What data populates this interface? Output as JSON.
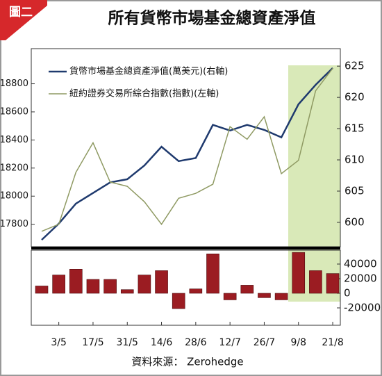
{
  "badge": "圖二",
  "source": "資料來源： Zerohedge",
  "chart_data": [
    {
      "type": "line",
      "title": "所有貨幣市場基金總資產淨值",
      "ylim": [
        17640,
        19050
      ],
      "yticks": [
        17800,
        18000,
        18200,
        18400,
        18600,
        18800
      ],
      "y2lim": [
        596.1,
        627.8
      ],
      "y2ticks": [
        600,
        605,
        610,
        615,
        620,
        625
      ],
      "series": [
        {
          "name": "貨幣市場基金總資產淨值(萬美元)(右軸)",
          "color": "#1f3a6e",
          "axis": "y2",
          "values": [
            597.2,
            599.8,
            603.0,
            604.7,
            606.4,
            606.9,
            609.1,
            612.1,
            609.8,
            610.3,
            615.6,
            614.7,
            615.6,
            614.8,
            613.6,
            618.9,
            622.0,
            624.7
          ]
        },
        {
          "name": "紐約證券交易所綜合指數(指數)(左軸)",
          "color": "#8f9a63",
          "axis": "y",
          "values": [
            17750,
            17800,
            18170,
            18380,
            18100,
            18070,
            17960,
            17800,
            17985,
            18020,
            18085,
            18495,
            18405,
            18565,
            18160,
            18255,
            18750,
            18910
          ]
        }
      ]
    },
    {
      "type": "bar",
      "categories": [
        null,
        "3/5",
        null,
        "17/5",
        null,
        "31/5",
        null,
        "14/6",
        null,
        "28/6",
        null,
        "12/7",
        null,
        "26/7",
        null,
        "9/8",
        null,
        "21/8"
      ],
      "values": [
        10000,
        25000,
        33000,
        19000,
        19000,
        5000,
        25000,
        31000,
        -21000,
        6000,
        54000,
        -9000,
        11000,
        -6000,
        -9000,
        56000,
        31000,
        27000
      ],
      "color": "#9b1c22",
      "ylim": [
        -43800,
        59000
      ],
      "y2ticks": [
        -20000,
        0,
        20000,
        40000
      ]
    }
  ]
}
